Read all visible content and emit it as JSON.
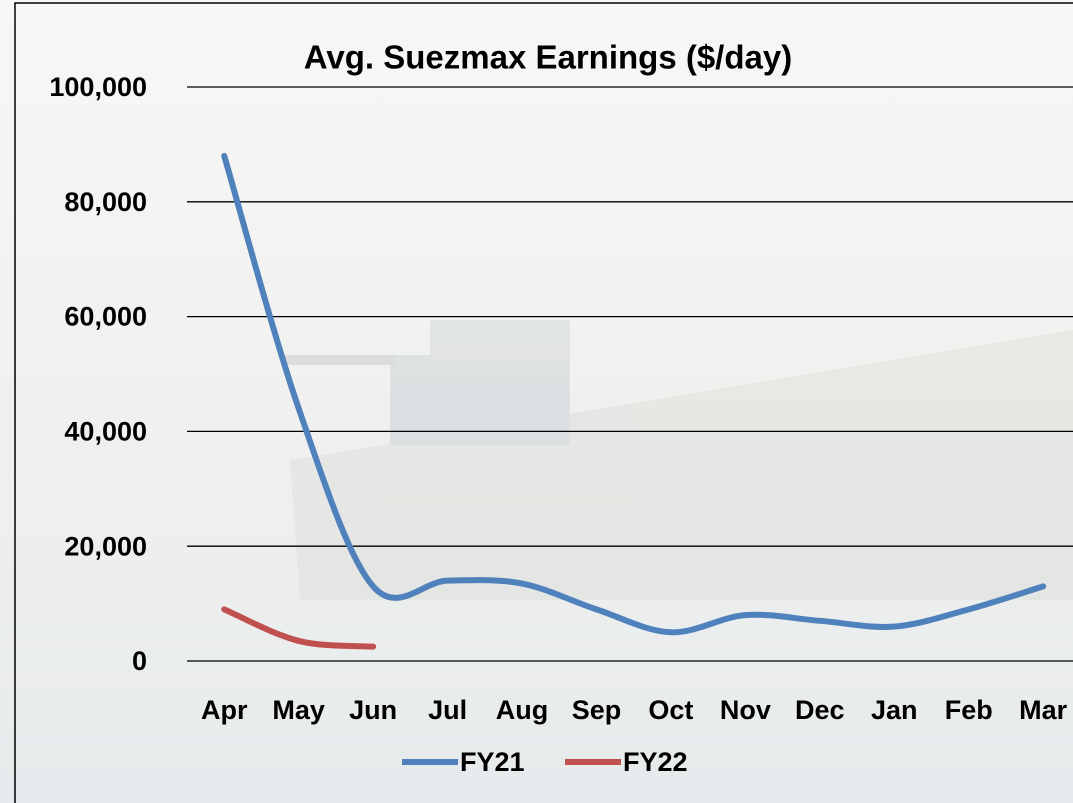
{
  "chart_data": {
    "type": "line",
    "title": "Avg. Suezmax Earnings ($/day)",
    "categories": [
      "Apr",
      "May",
      "Jun",
      "Jul",
      "Aug",
      "Sep",
      "Oct",
      "Nov",
      "Dec",
      "Jan",
      "Feb",
      "Mar"
    ],
    "series": [
      {
        "name": "FY21",
        "color": "#4f81bd",
        "values": [
          88000,
          44000,
          13000,
          14000,
          13500,
          9000,
          5000,
          8000,
          7000,
          6000,
          9000,
          13000
        ]
      },
      {
        "name": "FY22",
        "color": "#c0504d",
        "values": [
          9000,
          3500,
          2500,
          null,
          null,
          null,
          null,
          null,
          null,
          null,
          null,
          null
        ]
      }
    ],
    "ylim": [
      0,
      100000
    ],
    "yticks": [
      0,
      {
        "value": 20000,
        "label": "20,000"
      },
      {
        "value": 40000,
        "label": "40,000"
      },
      {
        "value": 60000,
        "label": "60,000"
      },
      {
        "value": 80000,
        "label": "80,000"
      },
      {
        "value": 100000,
        "label": "100,000"
      }
    ],
    "grid": true,
    "legend": "bottom"
  }
}
